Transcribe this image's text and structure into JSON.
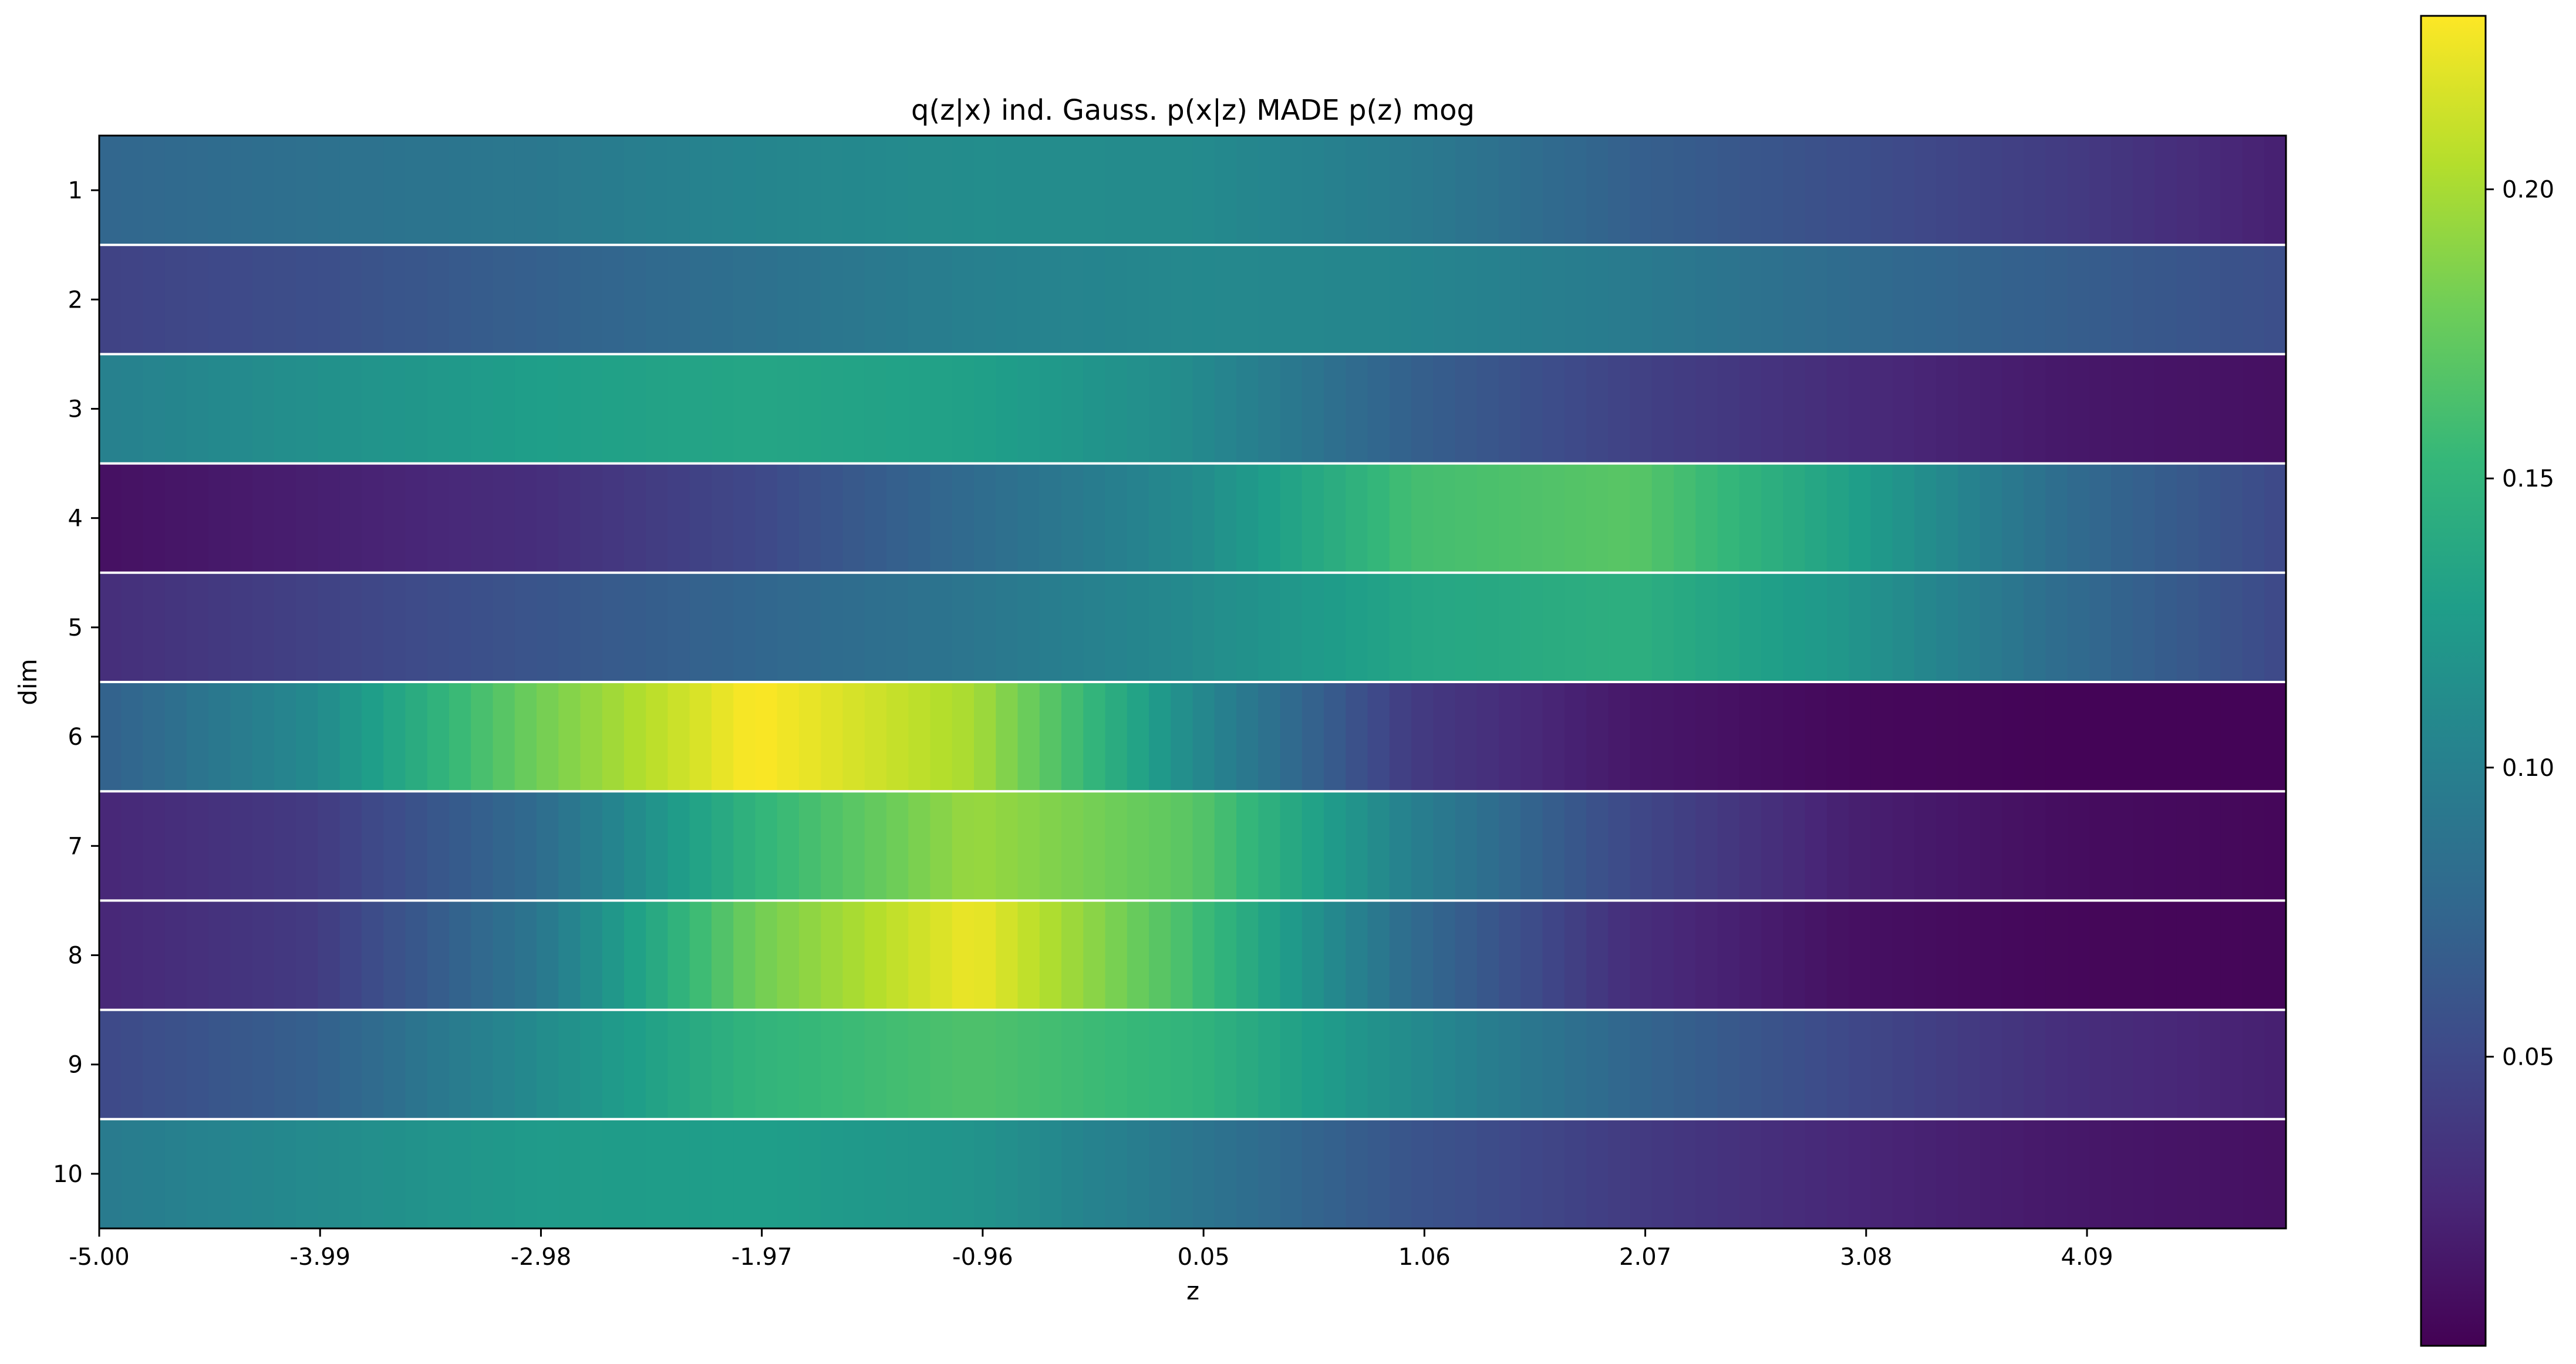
{
  "chart_data": {
    "type": "heatmap",
    "title": "q(z|x) ind. Gauss. p(x|z) MADE p(z) mog",
    "xlabel": "z",
    "ylabel": "dim",
    "x_ticks": [
      "-5.00",
      "-3.99",
      "-2.98",
      "-1.97",
      "-0.96",
      "0.05",
      "1.06",
      "2.07",
      "3.08",
      "4.09"
    ],
    "y_ticks": [
      "1",
      "2",
      "3",
      "4",
      "5",
      "6",
      "7",
      "8",
      "9",
      "10"
    ],
    "xlim": [
      -5.0,
      5.0
    ],
    "colormap": "viridis",
    "colorbar": {
      "range": [
        0.0,
        0.23
      ],
      "ticks": [
        "0.05",
        "0.10",
        "0.15",
        "0.20"
      ],
      "tick_values": [
        0.05,
        0.1,
        0.15,
        0.2
      ]
    },
    "row_separator_color": "#ffffff",
    "rows_comment_free": true,
    "rows": [
      {
        "dim": "1",
        "z": [
          -5.0,
          -4.0,
          -3.0,
          -2.0,
          -1.0,
          0.0,
          1.0,
          2.0,
          3.0,
          4.0,
          5.0
        ],
        "density": [
          0.075,
          0.085,
          0.092,
          0.105,
          0.112,
          0.11,
          0.095,
          0.07,
          0.055,
          0.04,
          0.02
        ]
      },
      {
        "dim": "2",
        "z": [
          -5.0,
          -4.0,
          -3.0,
          -2.0,
          -1.0,
          0.0,
          1.0,
          2.0,
          3.0,
          4.0,
          5.0
        ],
        "density": [
          0.045,
          0.055,
          0.07,
          0.085,
          0.1,
          0.108,
          0.105,
          0.095,
          0.08,
          0.068,
          0.055
        ]
      },
      {
        "dim": "3",
        "z": [
          -5.0,
          -4.0,
          -3.0,
          -2.0,
          -1.0,
          0.0,
          1.0,
          2.0,
          3.0,
          4.0,
          5.0
        ],
        "density": [
          0.1,
          0.115,
          0.128,
          0.135,
          0.13,
          0.11,
          0.07,
          0.045,
          0.028,
          0.015,
          0.01
        ]
      },
      {
        "dim": "4",
        "z": [
          -5.0,
          -4.0,
          -3.0,
          -2.0,
          -1.0,
          0.0,
          1.0,
          2.0,
          3.0,
          4.0,
          5.0
        ],
        "density": [
          0.01,
          0.02,
          0.03,
          0.05,
          0.08,
          0.11,
          0.16,
          0.17,
          0.13,
          0.08,
          0.05
        ]
      },
      {
        "dim": "5",
        "z": [
          -5.0,
          -4.0,
          -3.0,
          -2.0,
          -1.0,
          0.0,
          1.0,
          2.0,
          3.0,
          4.0,
          5.0
        ],
        "density": [
          0.03,
          0.045,
          0.06,
          0.075,
          0.09,
          0.11,
          0.135,
          0.145,
          0.12,
          0.08,
          0.05
        ]
      },
      {
        "dim": "6",
        "z": [
          -5.0,
          -4.0,
          -3.0,
          -2.0,
          -1.0,
          0.0,
          1.0,
          2.0,
          3.0,
          4.0,
          5.0
        ],
        "density": [
          0.07,
          0.11,
          0.18,
          0.23,
          0.2,
          0.11,
          0.04,
          0.015,
          0.005,
          0.002,
          0.002
        ]
      },
      {
        "dim": "7",
        "z": [
          -5.0,
          -4.0,
          -3.0,
          -2.0,
          -1.0,
          0.0,
          1.0,
          2.0,
          3.0,
          4.0,
          5.0
        ],
        "density": [
          0.025,
          0.04,
          0.08,
          0.15,
          0.195,
          0.17,
          0.1,
          0.05,
          0.02,
          0.008,
          0.004
        ]
      },
      {
        "dim": "8",
        "z": [
          -5.0,
          -4.0,
          -3.0,
          -2.0,
          -1.0,
          0.0,
          1.0,
          2.0,
          3.0,
          4.0,
          5.0
        ],
        "density": [
          0.025,
          0.04,
          0.09,
          0.18,
          0.225,
          0.16,
          0.08,
          0.03,
          0.01,
          0.004,
          0.003
        ]
      },
      {
        "dim": "9",
        "z": [
          -5.0,
          -4.0,
          -3.0,
          -2.0,
          -1.0,
          0.0,
          1.0,
          2.0,
          3.0,
          4.0,
          5.0
        ],
        "density": [
          0.05,
          0.07,
          0.11,
          0.15,
          0.165,
          0.15,
          0.11,
          0.075,
          0.05,
          0.03,
          0.02
        ]
      },
      {
        "dim": "10",
        "z": [
          -5.0,
          -4.0,
          -3.0,
          -2.0,
          -1.0,
          0.0,
          1.0,
          2.0,
          3.0,
          4.0,
          5.0
        ],
        "density": [
          0.095,
          0.11,
          0.125,
          0.128,
          0.118,
          0.09,
          0.06,
          0.04,
          0.025,
          0.015,
          0.01
        ]
      }
    ]
  }
}
